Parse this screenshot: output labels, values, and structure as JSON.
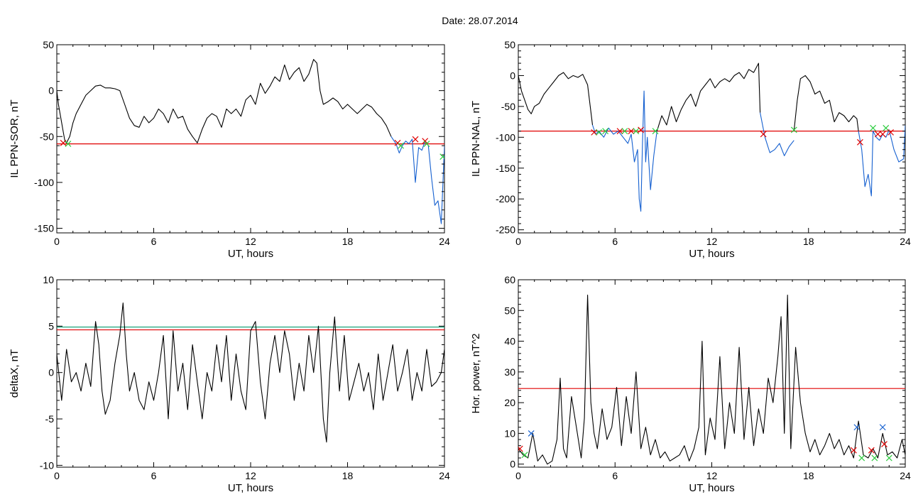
{
  "figure": {
    "title": "Date:  28.07.2014"
  },
  "chart_data": [
    {
      "type": "line",
      "ylabel": "IL PPN-SOR, nT",
      "xlabel": "UT, hours",
      "xlim": [
        0,
        24
      ],
      "ylim": [
        -155,
        50
      ],
      "xticks": [
        0,
        6,
        12,
        18,
        24
      ],
      "yticks": [
        50,
        0,
        -50,
        -100,
        -150
      ],
      "threshold": -58,
      "threshold_color": "#e00000",
      "series": [
        {
          "color": "#000000",
          "x": [
            0,
            0.1,
            0.25,
            0.4,
            0.5,
            0.6,
            0.8,
            1.0,
            1.2,
            1.5,
            1.8,
            2.1,
            2.4,
            2.7,
            3.0,
            3.3,
            3.6,
            3.9,
            4.2,
            4.5,
            4.8,
            5.1,
            5.4,
            5.7,
            6.0,
            6.3,
            6.6,
            6.9,
            7.2,
            7.5,
            7.8,
            8.1,
            8.4,
            8.7,
            9.0,
            9.3,
            9.6,
            9.9,
            10.2,
            10.5,
            10.8,
            11.1,
            11.4,
            11.7,
            12.0,
            12.3,
            12.6,
            12.9,
            13.2,
            13.5,
            13.8,
            14.1,
            14.4,
            14.7,
            15.0,
            15.3,
            15.6,
            15.9,
            16.1,
            16.3,
            16.5,
            16.8,
            17.1,
            17.4,
            17.7,
            18.0,
            18.3,
            18.6,
            18.9,
            19.2,
            19.5,
            19.8,
            20.1,
            20.4,
            20.7
          ],
          "y": [
            0,
            -15,
            -30,
            -45,
            -55,
            -57,
            -50,
            -35,
            -25,
            -15,
            -5,
            0,
            5,
            6,
            3,
            3,
            2,
            0,
            -15,
            -30,
            -38,
            -40,
            -28,
            -35,
            -30,
            -20,
            -25,
            -35,
            -20,
            -30,
            -28,
            -42,
            -50,
            -57,
            -42,
            -30,
            -25,
            -28,
            -40,
            -20,
            -25,
            -20,
            -28,
            -10,
            -5,
            -15,
            8,
            -3,
            5,
            15,
            10,
            28,
            12,
            20,
            25,
            10,
            18,
            34,
            30,
            0,
            -15,
            -12,
            -8,
            -12,
            -20,
            -15,
            -20,
            -25,
            -20,
            -15,
            -18,
            -25,
            -30,
            -38,
            -50
          ]
        },
        {
          "color": "#1560d0",
          "x": [
            20.7,
            21.0,
            21.2,
            21.4,
            21.6,
            21.8,
            22.0,
            22.2,
            22.4,
            22.6,
            22.8,
            23.0,
            23.2,
            23.4,
            23.6,
            23.8,
            24.0
          ],
          "y": [
            -50,
            -58,
            -68,
            -60,
            -55,
            -58,
            -53,
            -100,
            -62,
            -65,
            -55,
            -60,
            -95,
            -125,
            -120,
            -145,
            -60
          ]
        }
      ],
      "markers": [
        {
          "x": 0.4,
          "y": -57,
          "symbol": "x",
          "color": "#e00000"
        },
        {
          "x": 0.7,
          "y": -58,
          "symbol": "x",
          "color": "#2ecc40"
        },
        {
          "x": 21.1,
          "y": -57,
          "symbol": "x",
          "color": "#e00000"
        },
        {
          "x": 21.3,
          "y": -60,
          "symbol": "x",
          "color": "#2ecc40"
        },
        {
          "x": 22.2,
          "y": -53,
          "symbol": "x",
          "color": "#e00000"
        },
        {
          "x": 22.8,
          "y": -55,
          "symbol": "x",
          "color": "#e00000"
        },
        {
          "x": 22.9,
          "y": -58,
          "symbol": "x",
          "color": "#2ecc40"
        },
        {
          "x": 23.9,
          "y": -72,
          "symbol": "x",
          "color": "#2ecc40"
        }
      ]
    },
    {
      "type": "line",
      "ylabel": "IL PPN-NAL, nT",
      "xlabel": "UT, hours",
      "xlim": [
        0,
        24
      ],
      "ylim": [
        -255,
        50
      ],
      "xticks": [
        0,
        6,
        12,
        18,
        24
      ],
      "yticks": [
        50,
        0,
        -50,
        -100,
        -150,
        -200,
        -250
      ],
      "threshold": -90,
      "threshold_color": "#e00000",
      "series": [
        {
          "color": "#000000",
          "x": [
            0,
            0.2,
            0.4,
            0.6,
            0.8,
            1.0,
            1.3,
            1.6,
            1.9,
            2.2,
            2.5,
            2.8,
            3.1,
            3.4,
            3.7,
            4.0,
            4.3,
            4.6
          ],
          "y": [
            0,
            -25,
            -40,
            -55,
            -62,
            -50,
            -45,
            -30,
            -20,
            -10,
            0,
            5,
            -5,
            0,
            -3,
            2,
            -15,
            -80
          ]
        },
        {
          "color": "#1560d0",
          "x": [
            4.6,
            4.8,
            5.0,
            5.3,
            5.6,
            5.9,
            6.2,
            6.5,
            6.8,
            7.0,
            7.2,
            7.4,
            7.5,
            7.6,
            7.7,
            7.8,
            7.9,
            8.0,
            8.2,
            8.4,
            8.6
          ],
          "y": [
            -80,
            -95,
            -90,
            -100,
            -85,
            -95,
            -90,
            -100,
            -110,
            -95,
            -140,
            -120,
            -200,
            -220,
            -110,
            -25,
            -140,
            -100,
            -185,
            -130,
            -90
          ]
        },
        {
          "color": "#000000",
          "x": [
            8.6,
            8.9,
            9.2,
            9.5,
            9.8,
            10.1,
            10.4,
            10.7,
            11.0,
            11.3,
            11.6,
            11.9,
            12.2,
            12.5,
            12.8,
            13.1,
            13.4,
            13.7,
            14.0,
            14.3,
            14.6,
            14.9,
            15.0
          ],
          "y": [
            -90,
            -65,
            -80,
            -50,
            -75,
            -55,
            -40,
            -30,
            -50,
            -25,
            -15,
            -5,
            -20,
            -10,
            -5,
            -10,
            0,
            5,
            -5,
            10,
            5,
            20,
            -60
          ]
        },
        {
          "color": "#1560d0",
          "x": [
            15.0,
            15.3,
            15.6,
            15.9,
            16.2,
            16.5,
            16.8,
            17.1
          ],
          "y": [
            -60,
            -100,
            -125,
            -120,
            -110,
            -130,
            -115,
            -105
          ]
        },
        {
          "color": "#000000",
          "x": [
            17.1,
            17.3,
            17.5,
            17.8,
            18.1,
            18.4,
            18.7,
            19.0,
            19.3,
            19.6,
            19.9,
            20.2,
            20.5,
            20.8,
            21.0,
            21.1
          ],
          "y": [
            -90,
            -40,
            -5,
            0,
            -10,
            -30,
            -25,
            -45,
            -40,
            -75,
            -60,
            -65,
            -75,
            -65,
            -70,
            -90
          ]
        },
        {
          "color": "#1560d0",
          "x": [
            21.1,
            21.3,
            21.5,
            21.7,
            21.9,
            22.0,
            22.2,
            22.4,
            22.6,
            22.8,
            23.0,
            23.3,
            23.6,
            23.9,
            24.0
          ],
          "y": [
            -90,
            -120,
            -180,
            -160,
            -195,
            -90,
            -100,
            -105,
            -95,
            -100,
            -88,
            -120,
            -140,
            -135,
            -80
          ]
        }
      ],
      "markers": [
        {
          "x": 4.7,
          "y": -92,
          "symbol": "x",
          "color": "#e00000"
        },
        {
          "x": 5.0,
          "y": -92,
          "symbol": "x",
          "color": "#2ecc40"
        },
        {
          "x": 5.4,
          "y": -90,
          "symbol": "x",
          "color": "#2ecc40"
        },
        {
          "x": 6.3,
          "y": -90,
          "symbol": "x",
          "color": "#e00000"
        },
        {
          "x": 6.6,
          "y": -90,
          "symbol": "x",
          "color": "#2ecc40"
        },
        {
          "x": 7.0,
          "y": -90,
          "symbol": "x",
          "color": "#e00000"
        },
        {
          "x": 7.3,
          "y": -90,
          "symbol": "x",
          "color": "#2ecc40"
        },
        {
          "x": 7.6,
          "y": -88,
          "symbol": "x",
          "color": "#e00000"
        },
        {
          "x": 8.5,
          "y": -90,
          "symbol": "x",
          "color": "#2ecc40"
        },
        {
          "x": 15.2,
          "y": -95,
          "symbol": "x",
          "color": "#e00000"
        },
        {
          "x": 17.1,
          "y": -88,
          "symbol": "x",
          "color": "#2ecc40"
        },
        {
          "x": 21.2,
          "y": -108,
          "symbol": "x",
          "color": "#e00000"
        },
        {
          "x": 22.0,
          "y": -85,
          "symbol": "x",
          "color": "#2ecc40"
        },
        {
          "x": 22.3,
          "y": -95,
          "symbol": "x",
          "color": "#e00000"
        },
        {
          "x": 22.6,
          "y": -95,
          "symbol": "x",
          "color": "#e00000"
        },
        {
          "x": 22.8,
          "y": -85,
          "symbol": "x",
          "color": "#2ecc40"
        },
        {
          "x": 23.1,
          "y": -92,
          "symbol": "x",
          "color": "#e00000"
        }
      ]
    },
    {
      "type": "line",
      "ylabel": "deltaX, nT",
      "xlabel": "UT, hours",
      "xlim": [
        0,
        24
      ],
      "ylim": [
        -10.2,
        10
      ],
      "xticks": [
        0,
        6,
        12,
        18,
        24
      ],
      "yticks": [
        10,
        5,
        0,
        -5,
        -10
      ],
      "threshold": 4.6,
      "threshold_color": "#e00000",
      "threshold2": 4.9,
      "threshold2_color": "#1aa37a",
      "series": [
        {
          "color": "#000000",
          "x": [
            0,
            0.3,
            0.6,
            0.9,
            1.2,
            1.5,
            1.8,
            2.1,
            2.4,
            2.6,
            2.8,
            3.0,
            3.3,
            3.6,
            3.9,
            4.1,
            4.3,
            4.5,
            4.8,
            5.1,
            5.4,
            5.7,
            6.0,
            6.3,
            6.6,
            6.9,
            7.2,
            7.5,
            7.8,
            8.1,
            8.4,
            8.7,
            9.0,
            9.3,
            9.6,
            9.9,
            10.2,
            10.5,
            10.8,
            11.1,
            11.4,
            11.7,
            12.0,
            12.3,
            12.6,
            12.9,
            13.2,
            13.5,
            13.8,
            14.1,
            14.4,
            14.7,
            15.0,
            15.3,
            15.6,
            15.9,
            16.2,
            16.5,
            16.7,
            16.9,
            17.2,
            17.5,
            17.8,
            18.1,
            18.4,
            18.7,
            19.0,
            19.3,
            19.6,
            19.9,
            20.2,
            20.5,
            20.8,
            21.1,
            21.4,
            21.7,
            22.0,
            22.3,
            22.6,
            22.9,
            23.2,
            23.5,
            23.8,
            24.0
          ],
          "y": [
            2,
            -3,
            2.5,
            -1,
            0,
            -2,
            1,
            -1.5,
            5.5,
            3,
            -2,
            -4.5,
            -3,
            1,
            4,
            7.5,
            2,
            -2,
            0,
            -3,
            -4,
            -1,
            -3,
            0,
            4,
            -5,
            4.5,
            -2,
            1,
            -4,
            3,
            -1,
            -5,
            0,
            -2,
            3,
            -1,
            4,
            -3,
            2,
            -2,
            -4,
            4.5,
            5.5,
            -1,
            -5,
            1,
            4,
            0,
            4.5,
            2,
            -3,
            1,
            -2,
            4,
            0,
            5,
            -5,
            -7.5,
            0,
            6,
            -2,
            4,
            -3,
            -1,
            1,
            -2,
            0,
            -4,
            2,
            -3,
            0,
            3,
            -2,
            0,
            2.5,
            -3,
            0,
            -2,
            2.5,
            -1.5,
            -1,
            0,
            2.5
          ]
        }
      ]
    },
    {
      "type": "line",
      "ylabel": "Hor. power, nT^2",
      "xlabel": "UT, hours",
      "xlim": [
        0,
        24
      ],
      "ylim": [
        -1,
        60
      ],
      "xticks": [
        0,
        6,
        12,
        18,
        24
      ],
      "yticks": [
        60,
        50,
        40,
        30,
        20,
        10,
        0
      ],
      "threshold": 24.6,
      "threshold_color": "#e00000",
      "series": [
        {
          "color": "#000000",
          "x": [
            0,
            0.3,
            0.6,
            0.9,
            1.2,
            1.5,
            1.8,
            2.1,
            2.4,
            2.6,
            2.8,
            3.0,
            3.3,
            3.6,
            3.9,
            4.1,
            4.3,
            4.5,
            4.7,
            4.9,
            5.2,
            5.5,
            5.8,
            6.1,
            6.4,
            6.7,
            7.0,
            7.3,
            7.6,
            7.9,
            8.2,
            8.5,
            8.8,
            9.1,
            9.4,
            9.7,
            10.0,
            10.3,
            10.6,
            10.9,
            11.2,
            11.4,
            11.6,
            11.9,
            12.2,
            12.5,
            12.8,
            13.1,
            13.4,
            13.7,
            14.0,
            14.3,
            14.6,
            14.9,
            15.2,
            15.5,
            15.8,
            16.1,
            16.3,
            16.5,
            16.7,
            16.9,
            17.2,
            17.5,
            17.8,
            18.1,
            18.4,
            18.7,
            19.0,
            19.3,
            19.6,
            19.9,
            20.2,
            20.5,
            20.8,
            21.1,
            21.4,
            21.7,
            22.0,
            22.3,
            22.6,
            22.9,
            23.2,
            23.5,
            23.8,
            24.0
          ],
          "y": [
            5,
            3,
            2,
            10,
            1,
            3,
            0,
            1,
            8,
            28,
            5,
            2,
            22,
            12,
            2,
            15,
            55,
            20,
            10,
            5,
            18,
            8,
            12,
            25,
            6,
            22,
            10,
            30,
            5,
            12,
            3,
            8,
            2,
            4,
            1,
            2,
            3,
            6,
            1,
            5,
            12,
            40,
            3,
            15,
            8,
            35,
            5,
            20,
            10,
            38,
            8,
            25,
            6,
            18,
            10,
            28,
            20,
            35,
            48,
            10,
            55,
            5,
            38,
            20,
            10,
            4,
            8,
            3,
            6,
            10,
            5,
            8,
            3,
            6,
            2,
            14,
            3,
            2,
            5,
            2,
            10,
            3,
            4,
            2,
            8,
            3
          ]
        }
      ],
      "markers": [
        {
          "x": 0.1,
          "y": 5,
          "symbol": "x",
          "color": "#e00000"
        },
        {
          "x": 0.4,
          "y": 3,
          "symbol": "x",
          "color": "#2ecc40"
        },
        {
          "x": 0.8,
          "y": 10,
          "symbol": "x",
          "color": "#1560d0"
        },
        {
          "x": 20.8,
          "y": 4.5,
          "symbol": "x",
          "color": "#e00000"
        },
        {
          "x": 21.0,
          "y": 12,
          "symbol": "x",
          "color": "#1560d0"
        },
        {
          "x": 21.3,
          "y": 2,
          "symbol": "x",
          "color": "#2ecc40"
        },
        {
          "x": 21.9,
          "y": 4.5,
          "symbol": "x",
          "color": "#e00000"
        },
        {
          "x": 22.1,
          "y": 2,
          "symbol": "x",
          "color": "#2ecc40"
        },
        {
          "x": 22.6,
          "y": 12,
          "symbol": "x",
          "color": "#1560d0"
        },
        {
          "x": 22.7,
          "y": 6.5,
          "symbol": "x",
          "color": "#e00000"
        },
        {
          "x": 23.0,
          "y": 2,
          "symbol": "x",
          "color": "#2ecc40"
        }
      ]
    }
  ]
}
